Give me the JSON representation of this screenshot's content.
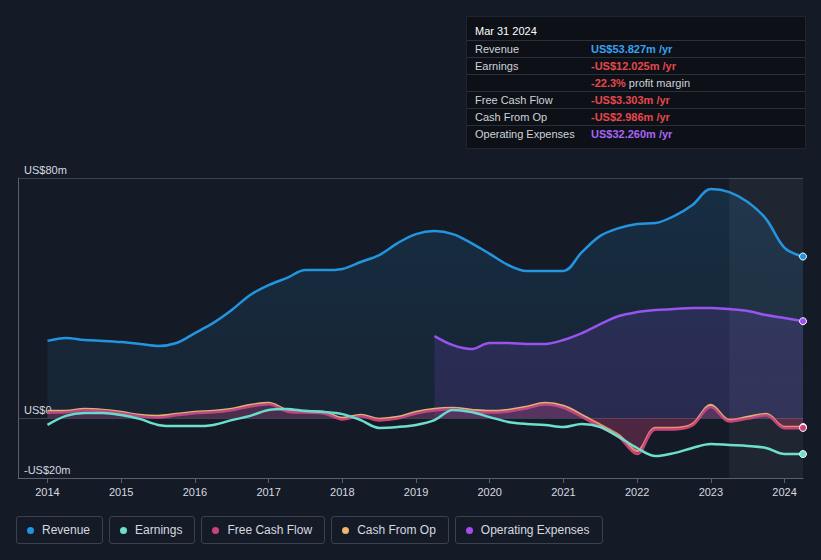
{
  "chart_data": {
    "type": "line",
    "x": [
      2014.0,
      2014.25,
      2014.5,
      2014.75,
      2015.0,
      2015.25,
      2015.5,
      2015.75,
      2016.0,
      2016.25,
      2016.5,
      2016.75,
      2017.0,
      2017.25,
      2017.5,
      2017.75,
      2018.0,
      2018.25,
      2018.5,
      2018.75,
      2019.0,
      2019.25,
      2019.5,
      2019.75,
      2020.0,
      2020.25,
      2020.5,
      2020.75,
      2021.0,
      2021.25,
      2021.5,
      2021.75,
      2022.0,
      2022.25,
      2022.5,
      2022.75,
      2023.0,
      2023.25,
      2023.5,
      2023.75,
      2024.0,
      2024.25
    ],
    "series": [
      {
        "name": "Revenue",
        "color": "#2394df",
        "values": [
          25.7,
          26.7,
          26.0,
          25.7,
          25.3,
          24.7,
          24.0,
          25.0,
          28.3,
          31.7,
          36.0,
          41.0,
          44.3,
          46.7,
          49.3,
          49.3,
          49.7,
          52.0,
          54.3,
          58.3,
          61.3,
          62.3,
          61.3,
          58.3,
          54.7,
          51.0,
          49.0,
          49.0,
          49.0,
          55.3,
          60.7,
          63.3,
          64.7,
          65.0,
          67.3,
          71.0,
          76.3,
          75.3,
          72.0,
          66.3,
          56.7,
          53.827
        ]
      },
      {
        "name": "Earnings",
        "color": "#6ce0cd",
        "values": [
          -2.3,
          0.7,
          1.7,
          1.7,
          1.0,
          -0.3,
          -2.3,
          -2.7,
          -2.7,
          -2.3,
          -0.7,
          0.7,
          2.7,
          3.0,
          2.3,
          2.0,
          1.3,
          -0.7,
          -3.3,
          -3.0,
          -2.3,
          -0.7,
          2.7,
          2.0,
          0.3,
          -1.3,
          -2.0,
          -2.3,
          -3.0,
          -2.0,
          -3.0,
          -6.3,
          -10.0,
          -12.7,
          -11.7,
          -10.0,
          -8.7,
          -9.0,
          -9.3,
          -10.0,
          -12.0,
          -12.025
        ]
      },
      {
        "name": "Free Cash Flow",
        "color": "#c8437c",
        "values": [
          1.8,
          1.9,
          2.6,
          2.3,
          1.6,
          0.6,
          0.2,
          0.9,
          1.6,
          1.9,
          2.6,
          3.8,
          4.6,
          2.2,
          1.8,
          1.5,
          -0.5,
          0.6,
          -0.8,
          -0.2,
          1.5,
          2.5,
          2.9,
          2.2,
          1.8,
          2.2,
          3.2,
          4.5,
          3.4,
          0.4,
          -3.0,
          -6.3,
          -12.0,
          -3.8,
          -3.8,
          -2.5,
          3.7,
          -1.2,
          -0.2,
          0.9,
          -3.4,
          -3.303
        ]
      },
      {
        "name": "Cash From Op",
        "color": "#f0b46a",
        "values": [
          2.3,
          2.3,
          3.0,
          2.7,
          2.0,
          1.0,
          0.7,
          1.3,
          2.0,
          2.3,
          3.0,
          4.3,
          5.0,
          2.7,
          2.3,
          2.0,
          0.0,
          1.0,
          -0.3,
          0.3,
          2.0,
          3.0,
          3.3,
          2.7,
          2.3,
          2.7,
          3.7,
          5.0,
          4.0,
          1.0,
          -2.3,
          -5.7,
          -11.0,
          -3.3,
          -3.3,
          -2.0,
          4.3,
          -0.7,
          0.3,
          1.3,
          -3.0,
          -2.986
        ]
      },
      {
        "name": "Operating Expenses",
        "color": "#a54cf0",
        "values": [
          null,
          null,
          null,
          null,
          null,
          null,
          null,
          null,
          null,
          null,
          null,
          null,
          null,
          null,
          null,
          null,
          null,
          null,
          null,
          null,
          null,
          27.3,
          24.3,
          23.0,
          25.0,
          25.0,
          24.7,
          24.7,
          26.0,
          28.3,
          31.3,
          34.0,
          35.3,
          36.0,
          36.3,
          36.7,
          36.7,
          36.3,
          35.7,
          34.3,
          33.3,
          32.26
        ]
      }
    ],
    "xlim": [
      2013.6,
      2024.25
    ],
    "xticks": [
      2014,
      2015,
      2016,
      2017,
      2018,
      2019,
      2020,
      2021,
      2022,
      2023,
      2024
    ],
    "ylim": [
      -20,
      80
    ],
    "yticks": [
      {
        "value": -20,
        "label": "-US$20m"
      },
      {
        "value": 0,
        "label": "US$0"
      },
      {
        "value": 80,
        "label": "US$80m"
      }
    ],
    "grid": true,
    "legend": "bottom-left",
    "annotations": {
      "title": "Mar 31 2024",
      "rows": [
        {
          "label": "Revenue",
          "value": "US$53.827m /yr",
          "color": "#3aa0f0"
        },
        {
          "label": "Earnings",
          "value": "-US$12.025m /yr",
          "color": "#e5484d"
        },
        {
          "value": "-22.3%",
          "note": "profit margin",
          "color": "#e5484d"
        },
        {
          "label": "Free Cash Flow",
          "value": "-US$3.303m /yr",
          "color": "#e5484d"
        },
        {
          "label": "Cash From Op",
          "value": "-US$2.986m /yr",
          "color": "#e5484d"
        },
        {
          "label": "Operating Expenses",
          "value": "US$32.260m /yr",
          "color": "#a866f5"
        }
      ]
    }
  }
}
